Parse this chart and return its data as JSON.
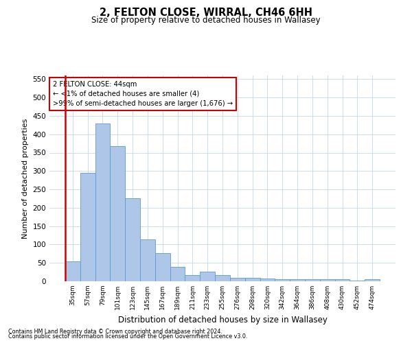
{
  "title1": "2, FELTON CLOSE, WIRRAL, CH46 6HH",
  "title2": "Size of property relative to detached houses in Wallasey",
  "xlabel": "Distribution of detached houses by size in Wallasey",
  "ylabel": "Number of detached properties",
  "footnote1": "Contains HM Land Registry data © Crown copyright and database right 2024.",
  "footnote2": "Contains public sector information licensed under the Open Government Licence v3.0.",
  "annotation_line1": "2 FELTON CLOSE: 44sqm",
  "annotation_line2": "← <1% of detached houses are smaller (4)",
  "annotation_line3": ">99% of semi-detached houses are larger (1,676) →",
  "categories": [
    "35sqm",
    "57sqm",
    "79sqm",
    "101sqm",
    "123sqm",
    "145sqm",
    "167sqm",
    "189sqm",
    "211sqm",
    "233sqm",
    "255sqm",
    "276sqm",
    "298sqm",
    "320sqm",
    "342sqm",
    "364sqm",
    "386sqm",
    "408sqm",
    "430sqm",
    "452sqm",
    "474sqm"
  ],
  "values": [
    55,
    295,
    430,
    367,
    225,
    113,
    77,
    40,
    17,
    27,
    17,
    10,
    10,
    8,
    5,
    5,
    5,
    5,
    5,
    2,
    5
  ],
  "bar_color": "#aec6e8",
  "bar_edge_color": "#5b9bd5",
  "highlight_color": "#cc0000",
  "annotation_box_edge_color": "#cc0000",
  "annotation_box_fill": "#ffffff",
  "background_color": "#ffffff",
  "grid_color": "#c8d8e8",
  "ylim": [
    0,
    560
  ],
  "yticks": [
    0,
    50,
    100,
    150,
    200,
    250,
    300,
    350,
    400,
    450,
    500,
    550
  ]
}
